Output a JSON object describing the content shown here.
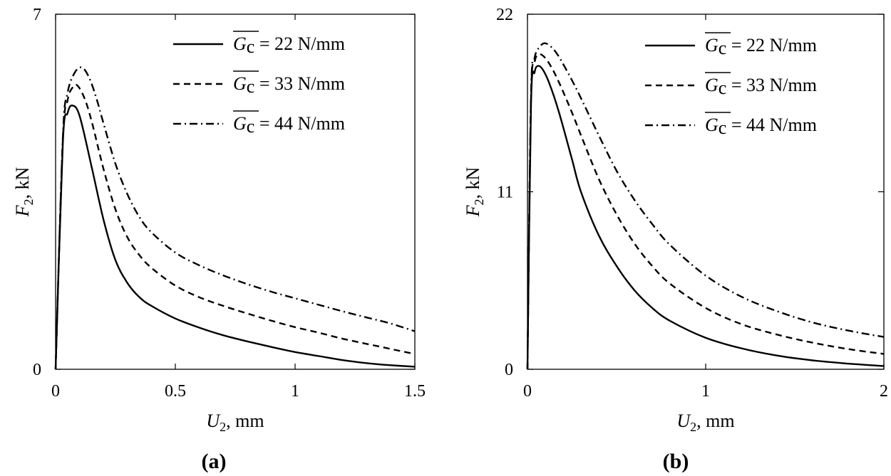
{
  "figure": {
    "panel_labels": [
      "(a)",
      "(b)"
    ]
  },
  "chart_data": [
    {
      "type": "line",
      "panel": "(a)",
      "xlabel_var": "U",
      "xlabel_sub": "2",
      "xlabel_unit": ", mm",
      "ylabel_var": "F",
      "ylabel_sub": "2",
      "ylabel_unit": ", kN",
      "xlim": [
        0,
        1.5
      ],
      "ylim": [
        0,
        7
      ],
      "xticks": [
        0,
        0.5,
        1,
        1.5
      ],
      "xtick_labels": [
        "0",
        "0.5",
        "1",
        "1.5"
      ],
      "yticks": [
        0,
        7
      ],
      "ytick_labels": [
        "0",
        "7"
      ],
      "grid": false,
      "legend_position": "top-right",
      "series": [
        {
          "name_var": "G",
          "name_sub": "c",
          "name_value": " = 22 N/mm",
          "style": "solid",
          "x": [
            0,
            0.03,
            0.05,
            0.07,
            0.1,
            0.15,
            0.2,
            0.25,
            0.3,
            0.35,
            0.4,
            0.5,
            0.6,
            0.7,
            0.8,
            0.9,
            1.0,
            1.1,
            1.2,
            1.3,
            1.4,
            1.5
          ],
          "y": [
            0,
            4.45,
            5.05,
            5.2,
            5.0,
            4.0,
            2.95,
            2.15,
            1.7,
            1.42,
            1.25,
            1.0,
            0.82,
            0.67,
            0.55,
            0.44,
            0.34,
            0.26,
            0.18,
            0.12,
            0.08,
            0.05
          ]
        },
        {
          "name_var": "G",
          "name_sub": "c",
          "name_value": " = 33 N/mm",
          "style": "dashed",
          "x": [
            0,
            0.03,
            0.05,
            0.07,
            0.09,
            0.12,
            0.15,
            0.2,
            0.25,
            0.3,
            0.35,
            0.4,
            0.5,
            0.6,
            0.7,
            0.8,
            0.9,
            1.0,
            1.1,
            1.2,
            1.3,
            1.4,
            1.5
          ],
          "y": [
            0,
            4.5,
            5.3,
            5.55,
            5.6,
            5.35,
            4.9,
            3.95,
            3.15,
            2.6,
            2.25,
            2.0,
            1.65,
            1.42,
            1.25,
            1.1,
            0.96,
            0.83,
            0.72,
            0.6,
            0.5,
            0.4,
            0.3
          ]
        },
        {
          "name_var": "G",
          "name_sub": "c",
          "name_value": " = 44 N/mm",
          "style": "dashdot",
          "x": [
            0,
            0.03,
            0.05,
            0.08,
            0.11,
            0.14,
            0.17,
            0.2,
            0.25,
            0.3,
            0.35,
            0.4,
            0.5,
            0.6,
            0.7,
            0.8,
            0.9,
            1.0,
            1.1,
            1.2,
            1.3,
            1.4,
            1.5
          ],
          "y": [
            0,
            4.55,
            5.45,
            5.85,
            5.95,
            5.75,
            5.35,
            4.85,
            4.05,
            3.45,
            3.0,
            2.7,
            2.3,
            2.05,
            1.85,
            1.68,
            1.53,
            1.4,
            1.27,
            1.14,
            1.02,
            0.9,
            0.75
          ]
        }
      ]
    },
    {
      "type": "line",
      "panel": "(b)",
      "xlabel_var": "U",
      "xlabel_sub": "2",
      "xlabel_unit": ", mm",
      "ylabel_var": "F",
      "ylabel_sub": "2",
      "ylabel_unit": ", kN",
      "xlim": [
        0,
        2
      ],
      "ylim": [
        0,
        22
      ],
      "xticks": [
        0,
        1,
        2
      ],
      "xtick_labels": [
        "0",
        "1",
        "2"
      ],
      "yticks": [
        0,
        11,
        22
      ],
      "ytick_labels": [
        "0",
        "11",
        "22"
      ],
      "grid": false,
      "legend_position": "top-right",
      "series": [
        {
          "name_var": "G",
          "name_sub": "c",
          "name_value": " = 22 N/mm",
          "style": "solid",
          "x": [
            0,
            0.02,
            0.04,
            0.06,
            0.09,
            0.13,
            0.18,
            0.25,
            0.3,
            0.4,
            0.5,
            0.6,
            0.7,
            0.8,
            1.0,
            1.2,
            1.4,
            1.6,
            1.8,
            2.0
          ],
          "y": [
            0,
            16.5,
            18.4,
            18.8,
            18.5,
            17.5,
            15.8,
            13.0,
            11.0,
            8.3,
            6.4,
            4.9,
            3.8,
            3.0,
            1.95,
            1.3,
            0.85,
            0.55,
            0.35,
            0.2
          ]
        },
        {
          "name_var": "G",
          "name_sub": "c",
          "name_value": " = 33 N/mm",
          "style": "dashed",
          "x": [
            0,
            0.02,
            0.04,
            0.06,
            0.09,
            0.13,
            0.18,
            0.25,
            0.3,
            0.4,
            0.5,
            0.6,
            0.7,
            0.8,
            1.0,
            1.2,
            1.4,
            1.6,
            1.8,
            2.0
          ],
          "y": [
            0,
            16.8,
            19.0,
            19.5,
            19.4,
            18.8,
            17.7,
            15.9,
            14.5,
            11.8,
            9.6,
            7.8,
            6.4,
            5.3,
            3.8,
            2.8,
            2.15,
            1.65,
            1.25,
            0.95
          ]
        },
        {
          "name_var": "G",
          "name_sub": "c",
          "name_value": " = 44 N/mm",
          "style": "dashdot",
          "x": [
            0,
            0.02,
            0.04,
            0.07,
            0.1,
            0.14,
            0.18,
            0.25,
            0.3,
            0.4,
            0.5,
            0.6,
            0.7,
            0.8,
            1.0,
            1.2,
            1.4,
            1.6,
            1.8,
            2.0
          ],
          "y": [
            0,
            17.0,
            19.3,
            20.0,
            20.2,
            19.9,
            19.3,
            17.9,
            16.8,
            14.5,
            12.3,
            10.5,
            9.0,
            7.7,
            5.8,
            4.5,
            3.6,
            2.9,
            2.4,
            2.0
          ]
        }
      ]
    }
  ]
}
